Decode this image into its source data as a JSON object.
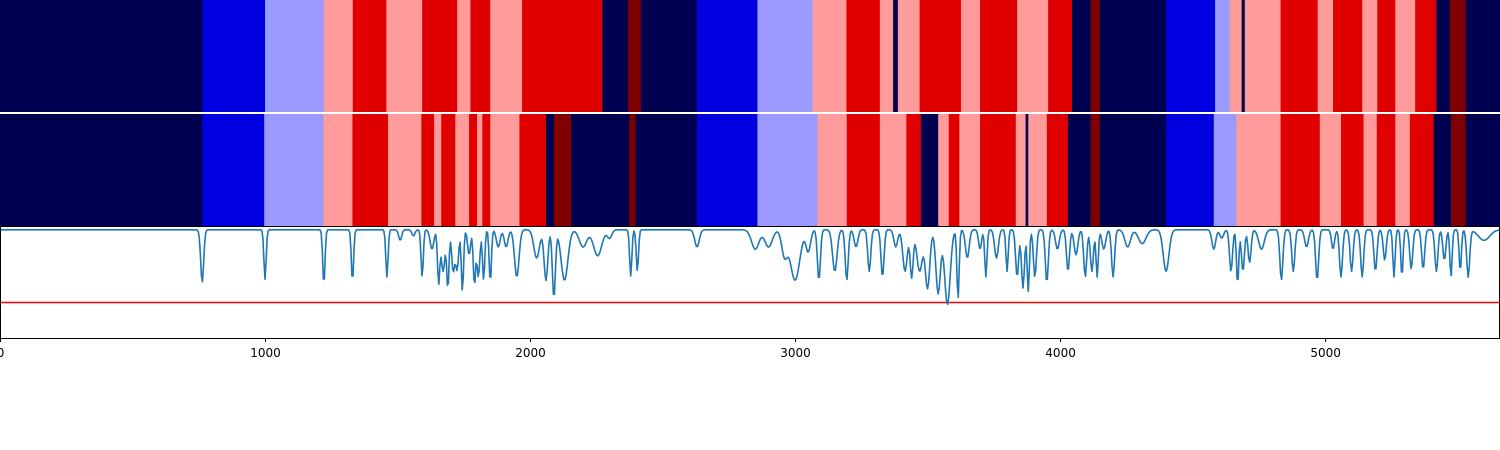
{
  "chart_data": [
    {
      "type": "heatmap",
      "name": "segmentation-a",
      "palette": {
        "0": "#000050",
        "1": "#0000e0",
        "2": "#9b9bff",
        "3": "#ff9b9b",
        "4": "#e00000",
        "5": "#800000"
      },
      "segments": [
        [
          0,
          763,
          0
        ],
        [
          763,
          1000,
          1
        ],
        [
          1000,
          1222,
          2
        ],
        [
          1222,
          1331,
          3
        ],
        [
          1331,
          1458,
          4
        ],
        [
          1458,
          1593,
          3
        ],
        [
          1593,
          1725,
          4
        ],
        [
          1725,
          1775,
          3
        ],
        [
          1775,
          1850,
          4
        ],
        [
          1850,
          1970,
          3
        ],
        [
          1970,
          2273,
          4
        ],
        [
          2273,
          2370,
          0
        ],
        [
          2370,
          2418,
          5
        ],
        [
          2418,
          2630,
          0
        ],
        [
          2630,
          2858,
          1
        ],
        [
          2858,
          3066,
          2
        ],
        [
          3066,
          3194,
          3
        ],
        [
          3194,
          3320,
          4
        ],
        [
          3320,
          3370,
          3
        ],
        [
          3370,
          3388,
          0
        ],
        [
          3388,
          3470,
          3
        ],
        [
          3470,
          3626,
          4
        ],
        [
          3626,
          3698,
          3
        ],
        [
          3698,
          3838,
          4
        ],
        [
          3838,
          3955,
          3
        ],
        [
          3955,
          4045,
          4
        ],
        [
          4045,
          4115,
          0
        ],
        [
          4115,
          4150,
          5
        ],
        [
          4150,
          4400,
          0
        ],
        [
          4400,
          4585,
          1
        ],
        [
          4585,
          4640,
          2
        ],
        [
          4640,
          4685,
          3
        ],
        [
          4685,
          4697,
          0
        ],
        [
          4697,
          4832,
          3
        ],
        [
          4832,
          4972,
          4
        ],
        [
          4972,
          5030,
          3
        ],
        [
          5030,
          5140,
          4
        ],
        [
          5140,
          5197,
          3
        ],
        [
          5197,
          5265,
          4
        ],
        [
          5265,
          5340,
          3
        ],
        [
          5340,
          5420,
          4
        ],
        [
          5420,
          5470,
          0
        ],
        [
          5470,
          5530,
          5
        ],
        [
          5530,
          5660,
          0
        ]
      ]
    },
    {
      "type": "heatmap",
      "name": "segmentation-b",
      "segments": [
        [
          0,
          763,
          0
        ],
        [
          763,
          997,
          1
        ],
        [
          997,
          1220,
          2
        ],
        [
          1220,
          1330,
          3
        ],
        [
          1330,
          1464,
          4
        ],
        [
          1464,
          1590,
          3
        ],
        [
          1590,
          1638,
          4
        ],
        [
          1638,
          1665,
          3
        ],
        [
          1665,
          1718,
          4
        ],
        [
          1718,
          1770,
          3
        ],
        [
          1770,
          1800,
          4
        ],
        [
          1800,
          1820,
          3
        ],
        [
          1820,
          1850,
          4
        ],
        [
          1850,
          1960,
          3
        ],
        [
          1960,
          2060,
          4
        ],
        [
          2060,
          2090,
          0
        ],
        [
          2090,
          2155,
          5
        ],
        [
          2155,
          2375,
          0
        ],
        [
          2375,
          2398,
          5
        ],
        [
          2398,
          2630,
          0
        ],
        [
          2630,
          2858,
          1
        ],
        [
          2858,
          3085,
          2
        ],
        [
          3085,
          3195,
          3
        ],
        [
          3195,
          3320,
          4
        ],
        [
          3320,
          3420,
          3
        ],
        [
          3420,
          3475,
          4
        ],
        [
          3475,
          3540,
          0
        ],
        [
          3540,
          3580,
          3
        ],
        [
          3580,
          3620,
          4
        ],
        [
          3620,
          3698,
          3
        ],
        [
          3698,
          3833,
          4
        ],
        [
          3833,
          3870,
          3
        ],
        [
          3870,
          3880,
          0
        ],
        [
          3880,
          3950,
          3
        ],
        [
          3950,
          4030,
          4
        ],
        [
          4030,
          4115,
          0
        ],
        [
          4115,
          4150,
          5
        ],
        [
          4150,
          4400,
          0
        ],
        [
          4400,
          4580,
          1
        ],
        [
          4580,
          4665,
          2
        ],
        [
          4665,
          4705,
          3
        ],
        [
          4705,
          4832,
          3
        ],
        [
          4832,
          4980,
          4
        ],
        [
          4980,
          5060,
          3
        ],
        [
          5060,
          5145,
          4
        ],
        [
          5145,
          5195,
          3
        ],
        [
          5195,
          5265,
          4
        ],
        [
          5265,
          5320,
          3
        ],
        [
          5320,
          5410,
          4
        ],
        [
          5410,
          5475,
          0
        ],
        [
          5475,
          5530,
          5
        ],
        [
          5530,
          5660,
          0
        ]
      ]
    },
    {
      "type": "line",
      "name": "score",
      "color": "#1f77b4",
      "xlim": [
        0,
        5660
      ],
      "ylim": [
        0,
        1
      ],
      "threshold": 0.32,
      "threshold_color": "#ff0000",
      "xticks": [
        0,
        1000,
        2000,
        3000,
        4000,
        5000
      ],
      "baseline": 0.975,
      "dips": [
        [
          763,
          0.5,
          8
        ],
        [
          1000,
          0.53,
          6
        ],
        [
          1222,
          0.48,
          6
        ],
        [
          1330,
          0.51,
          6
        ],
        [
          1460,
          0.55,
          6
        ],
        [
          1510,
          0.88,
          8
        ],
        [
          1560,
          0.92,
          8
        ],
        [
          1593,
          0.55,
          6
        ],
        [
          1630,
          0.8,
          10
        ],
        [
          1655,
          0.5,
          6
        ],
        [
          1672,
          0.6,
          10
        ],
        [
          1690,
          0.45,
          6
        ],
        [
          1710,
          0.6,
          8
        ],
        [
          1725,
          0.62,
          8
        ],
        [
          1745,
          0.42,
          6
        ],
        [
          1770,
          0.75,
          8
        ],
        [
          1790,
          0.48,
          6
        ],
        [
          1805,
          0.55,
          8
        ],
        [
          1825,
          0.52,
          6
        ],
        [
          1850,
          0.5,
          6
        ],
        [
          1880,
          0.82,
          10
        ],
        [
          1910,
          0.82,
          10
        ],
        [
          1950,
          0.55,
          12
        ],
        [
          2025,
          0.72,
          15
        ],
        [
          2060,
          0.52,
          10
        ],
        [
          2090,
          0.36,
          8
        ],
        [
          2130,
          0.52,
          18
        ],
        [
          2200,
          0.82,
          20
        ],
        [
          2255,
          0.74,
          22
        ],
        [
          2300,
          0.9,
          12
        ],
        [
          2380,
          0.56,
          6
        ],
        [
          2405,
          0.6,
          6
        ],
        [
          2630,
          0.82,
          12
        ],
        [
          2850,
          0.8,
          20
        ],
        [
          2900,
          0.82,
          20
        ],
        [
          2960,
          0.75,
          15
        ],
        [
          3000,
          0.52,
          25
        ],
        [
          3050,
          0.78,
          12
        ],
        [
          3090,
          0.52,
          8
        ],
        [
          3150,
          0.6,
          12
        ],
        [
          3195,
          0.52,
          8
        ],
        [
          3230,
          0.82,
          10
        ],
        [
          3280,
          0.6,
          8
        ],
        [
          3330,
          0.55,
          8
        ],
        [
          3380,
          0.82,
          10
        ],
        [
          3415,
          0.6,
          12
        ],
        [
          3440,
          0.55,
          8
        ],
        [
          3470,
          0.6,
          15
        ],
        [
          3500,
          0.45,
          12
        ],
        [
          3540,
          0.4,
          12
        ],
        [
          3575,
          0.3,
          15
        ],
        [
          3615,
          0.35,
          6
        ],
        [
          3650,
          0.72,
          10
        ],
        [
          3698,
          0.8,
          8
        ],
        [
          3720,
          0.55,
          6
        ],
        [
          3760,
          0.72,
          10
        ],
        [
          3800,
          0.6,
          6
        ],
        [
          3838,
          0.55,
          8
        ],
        [
          3860,
          0.45,
          8
        ],
        [
          3880,
          0.42,
          6
        ],
        [
          3905,
          0.55,
          8
        ],
        [
          3950,
          0.5,
          8
        ],
        [
          3990,
          0.8,
          10
        ],
        [
          4030,
          0.6,
          8
        ],
        [
          4060,
          0.75,
          10
        ],
        [
          4095,
          0.55,
          8
        ],
        [
          4120,
          0.6,
          8
        ],
        [
          4140,
          0.55,
          6
        ],
        [
          4165,
          0.8,
          10
        ],
        [
          4200,
          0.55,
          8
        ],
        [
          4255,
          0.82,
          15
        ],
        [
          4310,
          0.85,
          20
        ],
        [
          4400,
          0.6,
          15
        ],
        [
          4580,
          0.8,
          10
        ],
        [
          4610,
          0.9,
          10
        ],
        [
          4645,
          0.6,
          8
        ],
        [
          4670,
          0.48,
          6
        ],
        [
          4690,
          0.6,
          8
        ],
        [
          4715,
          0.68,
          8
        ],
        [
          4760,
          0.8,
          15
        ],
        [
          4835,
          0.52,
          8
        ],
        [
          4880,
          0.6,
          8
        ],
        [
          4930,
          0.82,
          10
        ],
        [
          4970,
          0.52,
          8
        ],
        [
          5030,
          0.8,
          8
        ],
        [
          5060,
          0.55,
          8
        ],
        [
          5100,
          0.6,
          8
        ],
        [
          5140,
          0.55,
          8
        ],
        [
          5190,
          0.6,
          8
        ],
        [
          5225,
          0.7,
          8
        ],
        [
          5260,
          0.55,
          6
        ],
        [
          5290,
          0.55,
          6
        ],
        [
          5325,
          0.62,
          8
        ],
        [
          5370,
          0.62,
          8
        ],
        [
          5420,
          0.6,
          8
        ],
        [
          5450,
          0.7,
          8
        ],
        [
          5475,
          0.55,
          6
        ],
        [
          5510,
          0.6,
          6
        ],
        [
          5540,
          0.55,
          8
        ],
        [
          5600,
          0.88,
          30
        ]
      ]
    }
  ]
}
